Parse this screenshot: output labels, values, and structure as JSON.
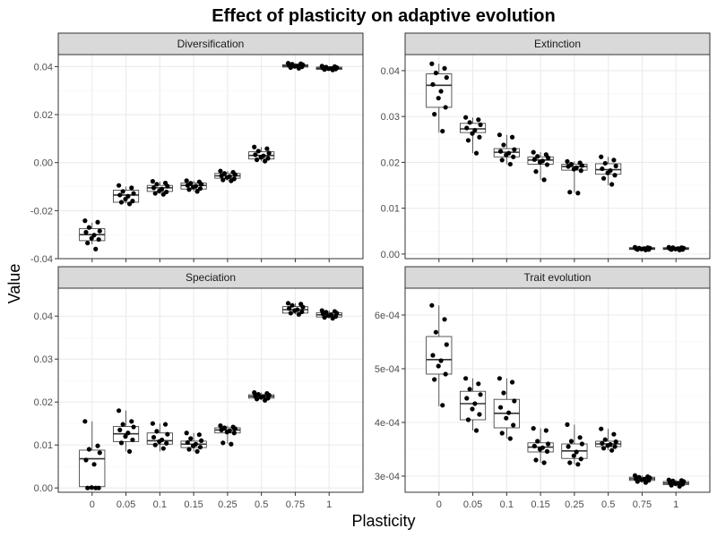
{
  "chart_data": {
    "type": "box",
    "title": "Effect of plasticity on adaptive evolution",
    "xlabel": "Plasticity",
    "ylabel": "Value",
    "categories": [
      "0",
      "0.05",
      "0.1",
      "0.15",
      "0.25",
      "0.5",
      "0.75",
      "1"
    ],
    "facets": [
      {
        "label": "Diversification",
        "ylim": [
          -0.04,
          0.045
        ],
        "yticks": [
          -0.04,
          -0.02,
          0.0,
          0.02,
          0.04
        ],
        "ytick_labels": [
          "-0.04",
          "-0.02",
          "0.00",
          "0.02",
          "0.04"
        ],
        "boxes": [
          {
            "q1": -0.0325,
            "median": -0.03,
            "q3": -0.0275,
            "low": -0.034,
            "high": -0.025
          },
          {
            "q1": -0.0165,
            "median": -0.0135,
            "q3": -0.0115,
            "low": -0.017,
            "high": -0.01
          },
          {
            "q1": -0.012,
            "median": -0.0105,
            "q3": -0.0095,
            "low": -0.013,
            "high": -0.008
          },
          {
            "q1": -0.011,
            "median": -0.0095,
            "q3": -0.0085,
            "low": -0.012,
            "high": -0.0075
          },
          {
            "q1": -0.0065,
            "median": -0.0055,
            "q3": -0.0045,
            "low": -0.0075,
            "high": -0.0035
          },
          {
            "q1": 0.0015,
            "median": 0.003,
            "q3": 0.0045,
            "low": 0.0005,
            "high": 0.0065
          },
          {
            "q1": 0.0398,
            "median": 0.0403,
            "q3": 0.0408,
            "low": 0.0392,
            "high": 0.0414
          },
          {
            "q1": 0.0388,
            "median": 0.0393,
            "q3": 0.0398,
            "low": 0.0383,
            "high": 0.0402
          }
        ],
        "points": [
          [
            -0.0242,
            -0.0248,
            -0.027,
            -0.0285,
            -0.029,
            -0.0302,
            -0.0315,
            -0.032,
            -0.0335,
            -0.036
          ],
          [
            -0.0095,
            -0.0105,
            -0.012,
            -0.0128,
            -0.0135,
            -0.014,
            -0.0152,
            -0.016,
            -0.0165,
            -0.0172
          ],
          [
            -0.0078,
            -0.0085,
            -0.009,
            -0.0098,
            -0.0105,
            -0.011,
            -0.0118,
            -0.0122,
            -0.0128,
            -0.0132
          ],
          [
            -0.0075,
            -0.008,
            -0.0086,
            -0.009,
            -0.0095,
            -0.0098,
            -0.0102,
            -0.0108,
            -0.0112,
            -0.012
          ],
          [
            -0.0035,
            -0.004,
            -0.0045,
            -0.005,
            -0.0055,
            -0.0058,
            -0.0062,
            -0.0068,
            -0.0072,
            -0.0076
          ],
          [
            0.0065,
            0.0058,
            0.0048,
            0.004,
            0.0033,
            0.0028,
            0.0022,
            0.0018,
            0.0012,
            0.0006
          ],
          [
            0.0414,
            0.0412,
            0.041,
            0.0407,
            0.0405,
            0.0403,
            0.0401,
            0.0399,
            0.0396,
            0.0393
          ],
          [
            0.0402,
            0.04,
            0.0398,
            0.0396,
            0.0394,
            0.0393,
            0.0391,
            0.039,
            0.0388,
            0.0386
          ]
        ]
      },
      {
        "label": "Extinction",
        "ylim": [
          -0.001,
          0.0435
        ],
        "yticks": [
          0.0,
          0.01,
          0.02,
          0.03,
          0.04
        ],
        "ytick_labels": [
          "0.00",
          "0.01",
          "0.02",
          "0.03",
          "0.04"
        ],
        "boxes": [
          {
            "q1": 0.032,
            "median": 0.0368,
            "q3": 0.0393,
            "low": 0.0265,
            "high": 0.0415
          },
          {
            "q1": 0.0265,
            "median": 0.0273,
            "q3": 0.0285,
            "low": 0.022,
            "high": 0.0298
          },
          {
            "q1": 0.0212,
            "median": 0.0222,
            "q3": 0.023,
            "low": 0.0196,
            "high": 0.026
          },
          {
            "q1": 0.0196,
            "median": 0.0205,
            "q3": 0.0212,
            "low": 0.0162,
            "high": 0.0222
          },
          {
            "q1": 0.0183,
            "median": 0.0191,
            "q3": 0.0196,
            "low": 0.0134,
            "high": 0.0202
          },
          {
            "q1": 0.0174,
            "median": 0.0184,
            "q3": 0.0197,
            "low": 0.015,
            "high": 0.0212
          },
          {
            "q1": 0.001,
            "median": 0.0012,
            "q3": 0.0014,
            "low": 0.0008,
            "high": 0.0015
          },
          {
            "q1": 0.001,
            "median": 0.0012,
            "q3": 0.0014,
            "low": 0.0008,
            "high": 0.0015
          }
        ],
        "points": [
          [
            0.0415,
            0.0405,
            0.0395,
            0.0385,
            0.037,
            0.0355,
            0.034,
            0.032,
            0.0305,
            0.0268
          ],
          [
            0.0298,
            0.0293,
            0.0287,
            0.0282,
            0.0275,
            0.027,
            0.0263,
            0.0255,
            0.0248,
            0.022
          ],
          [
            0.026,
            0.0255,
            0.0238,
            0.0228,
            0.0224,
            0.022,
            0.0216,
            0.0212,
            0.0205,
            0.0196
          ],
          [
            0.0222,
            0.0217,
            0.0213,
            0.021,
            0.0206,
            0.0203,
            0.02,
            0.0195,
            0.018,
            0.0162
          ],
          [
            0.0202,
            0.0199,
            0.0196,
            0.0193,
            0.0191,
            0.0188,
            0.0185,
            0.0182,
            0.0135,
            0.0133
          ],
          [
            0.0212,
            0.0205,
            0.0198,
            0.0192,
            0.0186,
            0.0182,
            0.0177,
            0.0172,
            0.0165,
            0.0152
          ],
          [
            0.0015,
            0.0014,
            0.0013,
            0.0013,
            0.0012,
            0.0012,
            0.0011,
            0.001,
            0.001,
            0.0009
          ],
          [
            0.0015,
            0.0014,
            0.0014,
            0.0013,
            0.0012,
            0.0012,
            0.0011,
            0.001,
            0.001,
            0.0009
          ]
        ]
      },
      {
        "label": "Speciation",
        "ylim": [
          -0.001,
          0.0465
        ],
        "yticks": [
          0.0,
          0.01,
          0.02,
          0.03,
          0.04
        ],
        "ytick_labels": [
          "0.00",
          "0.01",
          "0.02",
          "0.03",
          "0.04"
        ],
        "boxes": [
          {
            "q1": 0.0003,
            "median": 0.0068,
            "q3": 0.0088,
            "low": 0.0,
            "high": 0.0155
          },
          {
            "q1": 0.0108,
            "median": 0.0126,
            "q3": 0.0143,
            "low": 0.0085,
            "high": 0.018
          },
          {
            "q1": 0.0102,
            "median": 0.011,
            "q3": 0.0128,
            "low": 0.0085,
            "high": 0.015
          },
          {
            "q1": 0.0094,
            "median": 0.0102,
            "q3": 0.0109,
            "low": 0.0085,
            "high": 0.0128
          },
          {
            "q1": 0.0128,
            "median": 0.0135,
            "q3": 0.014,
            "low": 0.0103,
            "high": 0.0145
          },
          {
            "q1": 0.0209,
            "median": 0.0213,
            "q3": 0.0217,
            "low": 0.0204,
            "high": 0.0222
          },
          {
            "q1": 0.0407,
            "median": 0.0415,
            "q3": 0.0422,
            "low": 0.0404,
            "high": 0.043
          },
          {
            "q1": 0.0398,
            "median": 0.0403,
            "q3": 0.0408,
            "low": 0.0395,
            "high": 0.0413
          }
        ],
        "points": [
          [
            0.0155,
            0.0098,
            0.009,
            0.0082,
            0.0065,
            0.0055,
            0.0001,
            0.0,
            0.0,
            0.0
          ],
          [
            0.018,
            0.0155,
            0.0148,
            0.0142,
            0.0135,
            0.0128,
            0.012,
            0.0112,
            0.0105,
            0.0085
          ],
          [
            0.015,
            0.0148,
            0.0132,
            0.0125,
            0.0118,
            0.0112,
            0.0108,
            0.0104,
            0.01,
            0.0092
          ],
          [
            0.0128,
            0.0124,
            0.0115,
            0.011,
            0.0106,
            0.0102,
            0.0098,
            0.0095,
            0.009,
            0.0085
          ],
          [
            0.0145,
            0.0142,
            0.014,
            0.0138,
            0.0135,
            0.0133,
            0.013,
            0.0128,
            0.0105,
            0.0102
          ],
          [
            0.0222,
            0.022,
            0.0218,
            0.0216,
            0.0214,
            0.0213,
            0.0211,
            0.0209,
            0.0207,
            0.0204
          ],
          [
            0.043,
            0.0428,
            0.0425,
            0.0421,
            0.0418,
            0.0415,
            0.0413,
            0.041,
            0.0407,
            0.0404
          ],
          [
            0.0413,
            0.0411,
            0.0409,
            0.0407,
            0.0405,
            0.0403,
            0.0401,
            0.0399,
            0.0397,
            0.0395
          ]
        ]
      },
      {
        "label": "Trait evolution",
        "ylim": [
          0.00027,
          0.00065
        ],
        "yticks": [
          0.0003,
          0.0004,
          0.0005,
          0.0006
        ],
        "ytick_labels": [
          "3e-04",
          "4e-04",
          "5e-04",
          "6e-04"
        ],
        "boxes": [
          {
            "q1": 0.00049,
            "median": 0.000517,
            "q3": 0.00056,
            "low": 0.00043,
            "high": 0.000618
          },
          {
            "q1": 0.000405,
            "median": 0.000435,
            "q3": 0.000458,
            "low": 0.000385,
            "high": 0.000482
          },
          {
            "q1": 0.00039,
            "median": 0.000417,
            "q3": 0.000443,
            "low": 0.00037,
            "high": 0.000482
          },
          {
            "q1": 0.000345,
            "median": 0.000354,
            "q3": 0.000362,
            "low": 0.000325,
            "high": 0.000389
          },
          {
            "q1": 0.000333,
            "median": 0.000347,
            "q3": 0.00036,
            "low": 0.000322,
            "high": 0.000396
          },
          {
            "q1": 0.000355,
            "median": 0.00036,
            "q3": 0.000365,
            "low": 0.000348,
            "high": 0.000388
          },
          {
            "q1": 0.000292,
            "median": 0.000295,
            "q3": 0.000298,
            "low": 0.000288,
            "high": 0.000301
          },
          {
            "q1": 0.000284,
            "median": 0.000287,
            "q3": 0.00029,
            "low": 0.000281,
            "high": 0.000293
          }
        ],
        "points": [
          [
            0.000618,
            0.000592,
            0.000568,
            0.000545,
            0.000525,
            0.000515,
            0.000505,
            0.00049,
            0.00048,
            0.000432
          ],
          [
            0.000482,
            0.000472,
            0.000462,
            0.000452,
            0.000445,
            0.000435,
            0.000425,
            0.000415,
            0.000405,
            0.000385
          ],
          [
            0.000482,
            0.000475,
            0.000455,
            0.00044,
            0.000428,
            0.000418,
            0.000408,
            0.000395,
            0.00038,
            0.00037
          ],
          [
            0.000389,
            0.000385,
            0.000365,
            0.00036,
            0.000356,
            0.000353,
            0.00035,
            0.000346,
            0.00033,
            0.000325
          ],
          [
            0.000396,
            0.000372,
            0.000365,
            0.00036,
            0.000355,
            0.000345,
            0.000338,
            0.000332,
            0.000325,
            0.000322
          ],
          [
            0.000388,
            0.000378,
            0.000368,
            0.000364,
            0.000361,
            0.000359,
            0.000357,
            0.000355,
            0.000352,
            0.000348
          ],
          [
            0.000301,
            0.000299,
            0.000298,
            0.000297,
            0.000295,
            0.000294,
            0.000293,
            0.000292,
            0.00029,
            0.000288
          ],
          [
            0.000293,
            0.000292,
            0.000291,
            0.00029,
            0.000288,
            0.000287,
            0.000286,
            0.000285,
            0.000283,
            0.000281
          ]
        ]
      }
    ],
    "grid": true,
    "colors": {
      "panel_background": "#ffffff",
      "grid_major": "#ebebeb",
      "grid_minor": "#f5f5f5",
      "strip_background": "#d9d9d9",
      "border": "#333333",
      "box": "#333333",
      "point": "#000000"
    }
  }
}
